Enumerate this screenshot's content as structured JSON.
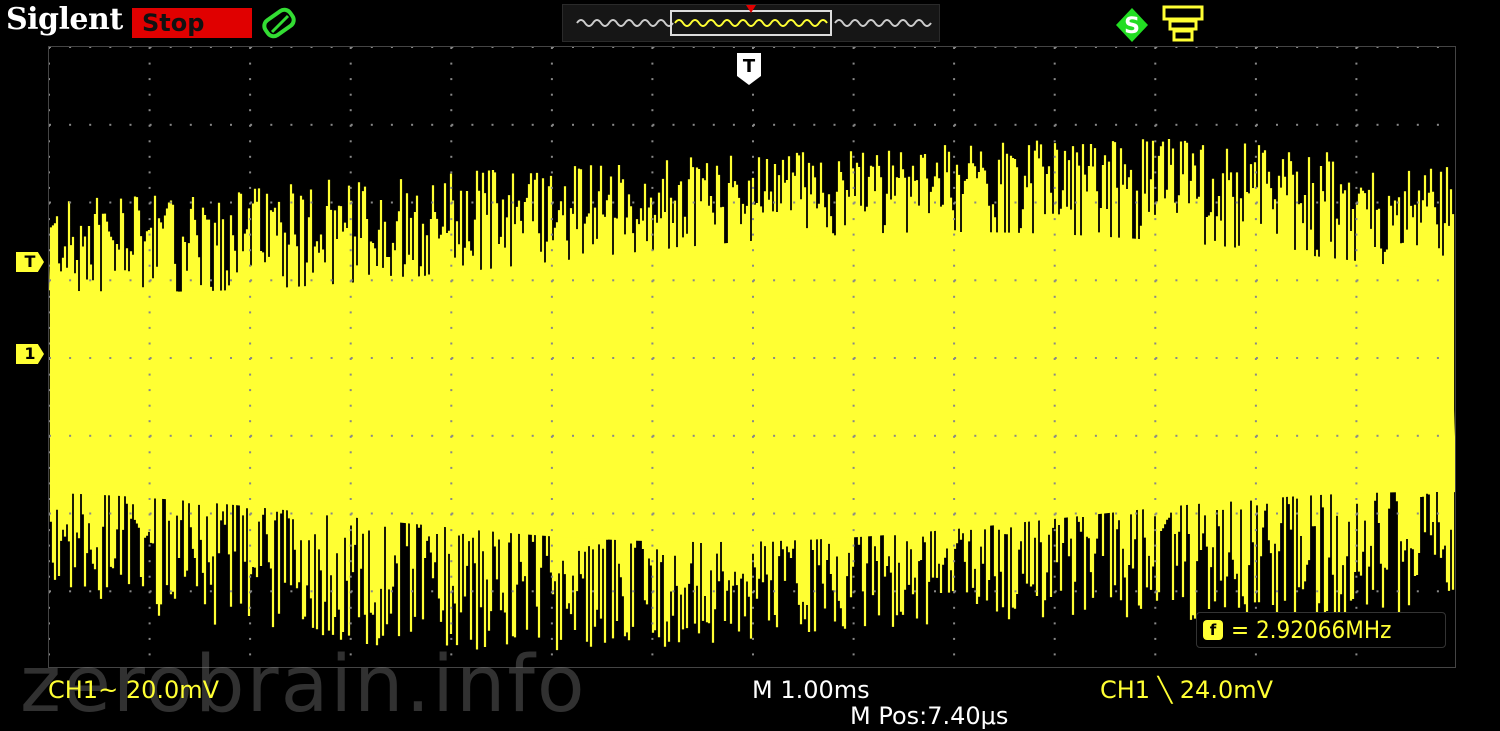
{
  "brand": "Siglent",
  "run_state": "Stop",
  "markers": {
    "trigger_level": "T",
    "channel_ref": "1",
    "trigger_position": "T"
  },
  "measurement": {
    "frequency_icon": "f",
    "frequency": "= 2.92066MHz"
  },
  "status": {
    "ch1_scale": "CH1~ 20.0mV",
    "timebase": "M 1.00ms",
    "trigger": "CH1 ╲ 24.0mV",
    "position": "M Pos:7.40μs"
  },
  "watermark": "zerobrain.info",
  "colors": {
    "trace": "#ffff33",
    "stop": "#e00000",
    "grid": "#888888"
  },
  "icons": [
    "acquire-icon",
    "save-icon",
    "usb-icon",
    "trigger-arrow-icon"
  ]
}
